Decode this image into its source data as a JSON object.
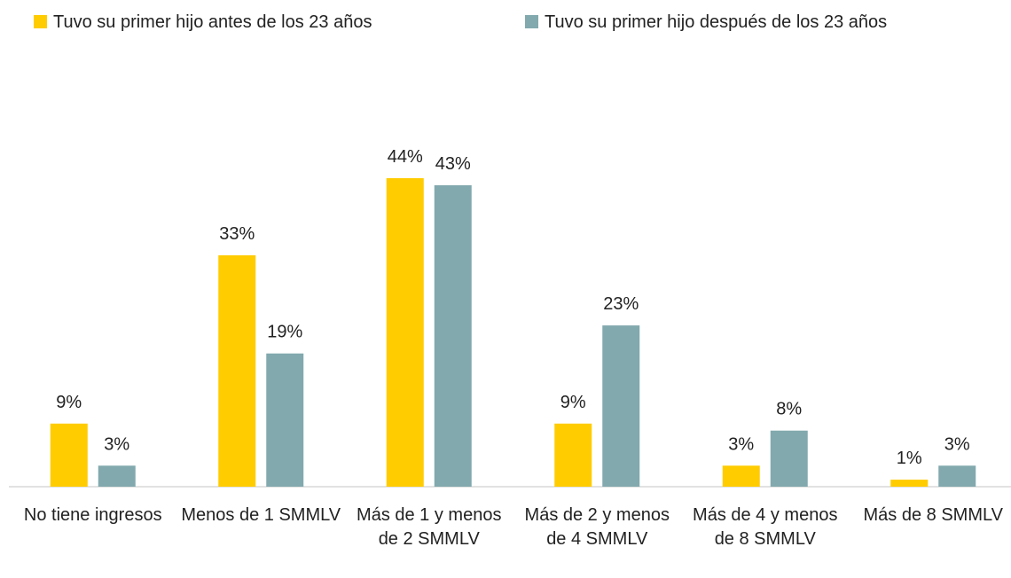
{
  "chart_data": {
    "type": "bar",
    "categories": [
      "No tiene ingresos",
      "Menos de 1 SMMLV",
      "Más de 1 y menos de 2 SMMLV",
      "Más de 2 y menos de 4 SMMLV",
      "Más de 4 y menos de 8 SMMLV",
      "Más de 8 SMMLV"
    ],
    "series": [
      {
        "name": "Tuvo su primer hijo antes de los 23 años",
        "color": "#FFCC00",
        "values": [
          9,
          33,
          44,
          9,
          3,
          1
        ],
        "value_labels": [
          "9%",
          "33%",
          "44%",
          "9%",
          "3%",
          "1%"
        ]
      },
      {
        "name": "Tuvo su primer hijo después de los 23 años",
        "color": "#82A9AE",
        "values": [
          3,
          19,
          43,
          23,
          8,
          3
        ],
        "value_labels": [
          "3%",
          "19%",
          "43%",
          "23%",
          "8%",
          "3%"
        ]
      }
    ],
    "legend": "top"
  }
}
